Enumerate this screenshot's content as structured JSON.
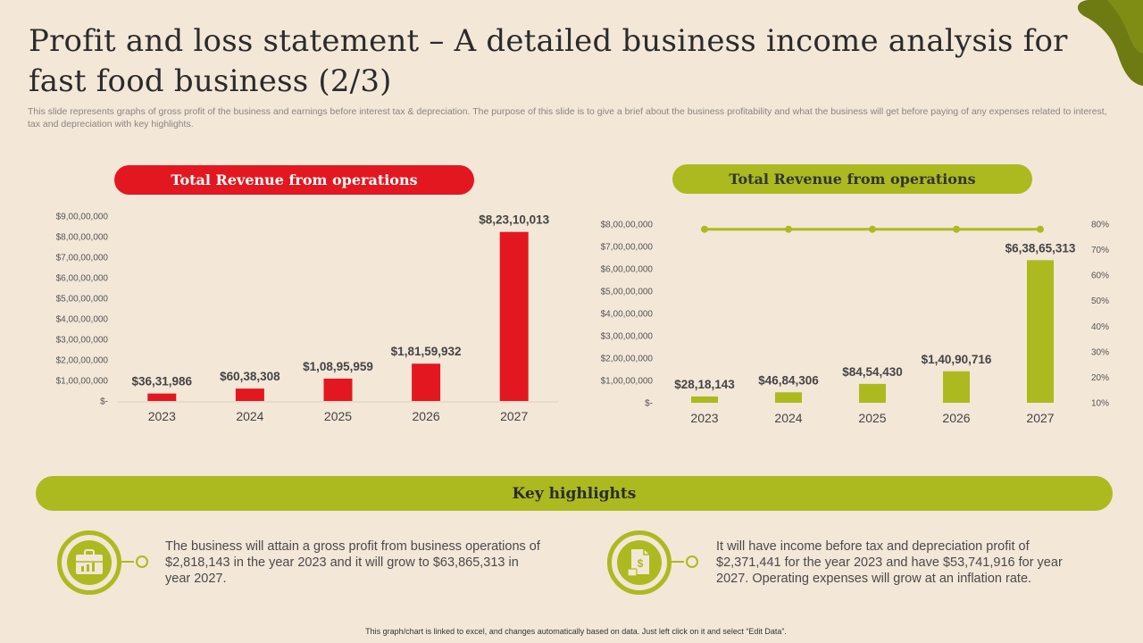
{
  "title": "Profit and loss statement – A detailed business income analysis for fast food business (2/3)",
  "subtitle": "This slide represents graphs of gross profit of the business and earnings before interest tax & depreciation. The purpose of this slide is to give a brief about the business profitability and what the business will get before paying of any expenses related to interest, tax and depreciation with key highlights.",
  "colors": {
    "red": "#E3171F",
    "green": "#ACBA1F",
    "background": "#F3E7D8"
  },
  "chart_data": [
    {
      "type": "bar",
      "title": "Total Revenue from operations",
      "categories": [
        "2023",
        "2024",
        "2025",
        "2026",
        "2027"
      ],
      "values": [
        3631986,
        6038308,
        10895959,
        18159932,
        82310013
      ],
      "value_labels": [
        "$36,31,986",
        "$60,38,308",
        "$1,08,95,959",
        "$1,81,59,932",
        "$8,23,10,013"
      ],
      "ylim": [
        0,
        90000000
      ],
      "yticks": [
        "$-",
        "$1,00,00,000",
        "$2,00,00,000",
        "$3,00,00,000",
        "$4,00,00,000",
        "$5,00,00,000",
        "$6,00,00,000",
        "$7,00,00,000",
        "$8,00,00,000",
        "$9,00,00,000"
      ],
      "color": "#E3171F",
      "grid": false
    },
    {
      "type": "bar",
      "title": "Total Revenue from operations",
      "categories": [
        "2023",
        "2024",
        "2025",
        "2026",
        "2027"
      ],
      "values": [
        2818143,
        4684306,
        8454430,
        14090716,
        63865313
      ],
      "value_labels": [
        "$28,18,143",
        "$46,84,306",
        "$84,54,430",
        "$1,40,90,716",
        "$6,38,65,313"
      ],
      "ylim": [
        0,
        80000000
      ],
      "yticks": [
        "$-",
        "$1,00,00,000",
        "$2,00,00,000",
        "$3,00,00,000",
        "$4,00,00,000",
        "$5,00,00,000",
        "$6,00,00,000",
        "$7,00,00,000",
        "$8,00,00,000"
      ],
      "secondary_series": {
        "type": "line",
        "values": [
          78,
          78,
          78,
          78,
          78
        ]
      },
      "y2lim": [
        10,
        80
      ],
      "y2ticks": [
        "10%",
        "20%",
        "30%",
        "40%",
        "50%",
        "60%",
        "70%",
        "80%"
      ],
      "color": "#ACBA1F",
      "grid": false
    }
  ],
  "key_highlights": {
    "title": "Key highlights",
    "items": [
      {
        "icon": "briefcase-chart-icon",
        "text": "The business will attain a gross profit from business operations of $2,818,143 in the year 2023 and it will grow to $63,865,313 in year 2027."
      },
      {
        "icon": "document-money-icon",
        "text": "It will have income before tax and depreciation profit of $2,371,441 for the year 2023 and have $53,741,916 for year 2027. Operating expenses will grow at an inflation rate."
      }
    ]
  },
  "footer": "This graph/chart is linked to excel, and changes automatically based on data. Just left click on it and select “Edit Data”."
}
